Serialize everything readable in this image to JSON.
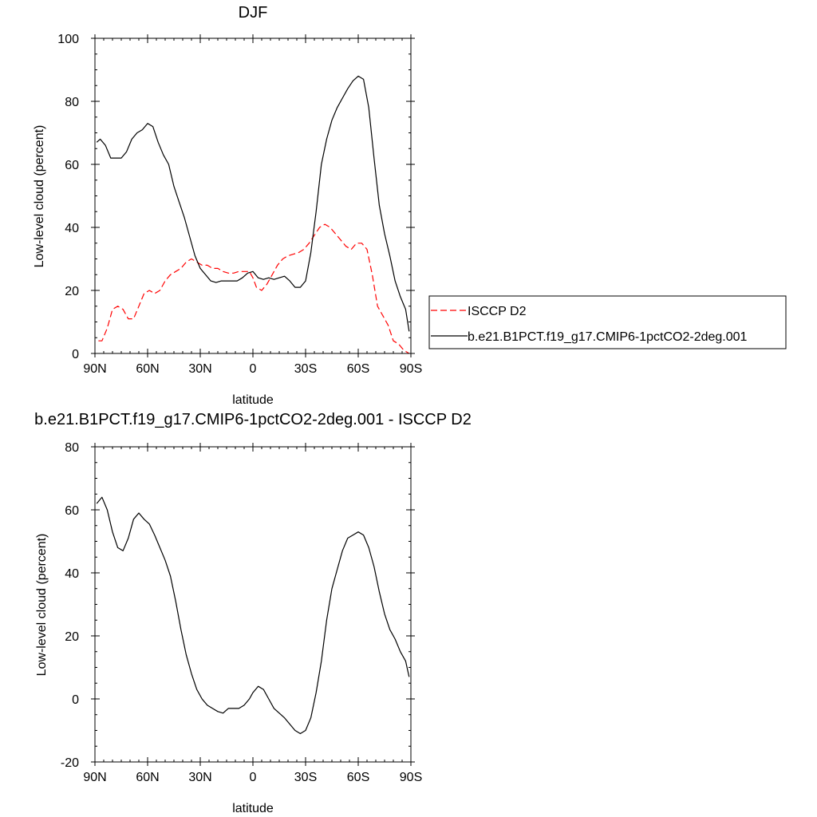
{
  "chart_data": [
    {
      "type": "line",
      "title": "DJF",
      "xlabel": "latitude",
      "ylabel": "Low-level cloud (percent)",
      "xlim": [
        90,
        -90
      ],
      "ylim": [
        0,
        100
      ],
      "xtick_values": [
        90,
        60,
        30,
        0,
        -30,
        -60,
        -90
      ],
      "xtick_labels": [
        "90N",
        "60N",
        "30N",
        "0",
        "30S",
        "60S",
        "90S"
      ],
      "ytick_values": [
        0,
        20,
        40,
        60,
        80,
        100
      ],
      "ytick_labels": [
        "0",
        "20",
        "40",
        "60",
        "80",
        "100"
      ],
      "legend_position": "right",
      "series": [
        {
          "name": "ISCCP D2",
          "color": "#ff0000",
          "dash": "dashed",
          "x": [
            88,
            86,
            83,
            80,
            77,
            74,
            71,
            68,
            65,
            62,
            59,
            56,
            53,
            50,
            47,
            44,
            41,
            38,
            35,
            32,
            29,
            26,
            23,
            20,
            17,
            14,
            11,
            8,
            5,
            2,
            0,
            -2,
            -5,
            -8,
            -11,
            -14,
            -17,
            -20,
            -23,
            -26,
            -29,
            -32,
            -35,
            -38,
            -41,
            -44,
            -47,
            -50,
            -53,
            -56,
            -59,
            -62,
            -65,
            -68,
            -71,
            -74,
            -77,
            -80,
            -83,
            -86,
            -89
          ],
          "y": [
            4,
            4,
            8,
            14,
            15,
            14,
            11,
            11,
            15,
            19,
            20,
            19,
            20,
            23,
            25,
            26,
            27,
            29,
            30,
            29,
            28,
            28,
            27,
            27,
            26,
            25.5,
            25.5,
            26,
            26,
            26,
            24,
            21,
            20,
            22,
            25,
            28,
            30,
            31,
            31.5,
            32,
            33,
            35,
            37.5,
            40,
            41,
            40,
            38,
            36,
            34,
            33,
            35,
            35,
            33,
            25,
            15,
            12,
            9,
            4,
            3,
            1,
            0
          ]
        },
        {
          "name": "b.e21.B1PCT.f19_g17.CMIP6-1pctCO2-2deg.001",
          "color": "#000000",
          "dash": "solid",
          "x": [
            89,
            87,
            84,
            81,
            78,
            75,
            72,
            69,
            66,
            63,
            60,
            57,
            54,
            51,
            48,
            45,
            42,
            39,
            36,
            33,
            30,
            27,
            24,
            21,
            18,
            15,
            12,
            9,
            6,
            3,
            0,
            -3,
            -6,
            -9,
            -12,
            -15,
            -18,
            -21,
            -24,
            -27,
            -30,
            -33,
            -36,
            -39,
            -42,
            -45,
            -48,
            -51,
            -54,
            -57,
            -60,
            -63,
            -66,
            -69,
            -72,
            -75,
            -78,
            -81,
            -84,
            -87,
            -89
          ],
          "y": [
            67,
            68,
            66,
            62,
            62,
            62,
            64,
            68,
            70,
            71,
            73,
            72,
            67,
            63,
            60,
            53,
            48,
            43,
            37,
            31,
            27,
            25,
            23,
            22.5,
            23,
            23,
            23,
            23,
            24,
            25.5,
            26,
            24,
            23.5,
            24,
            23.5,
            24,
            24.5,
            23,
            21,
            21,
            23,
            32,
            45,
            60,
            68,
            74,
            78,
            81,
            84,
            86.5,
            88,
            87,
            78,
            62,
            47,
            38,
            31,
            23,
            18,
            14,
            7
          ]
        }
      ]
    },
    {
      "type": "line",
      "title": "b.e21.B1PCT.f19_g17.CMIP6-1pctCO2-2deg.001 - ISCCP D2",
      "xlabel": "latitude",
      "ylabel": "Low-level cloud (percent)",
      "xlim": [
        90,
        -90
      ],
      "ylim": [
        -20,
        80
      ],
      "xtick_values": [
        90,
        60,
        30,
        0,
        -30,
        -60,
        -90
      ],
      "xtick_labels": [
        "90N",
        "60N",
        "30N",
        "0",
        "30S",
        "60S",
        "90S"
      ],
      "ytick_values": [
        -20,
        0,
        20,
        40,
        60,
        80
      ],
      "ytick_labels": [
        "-20",
        "0",
        "20",
        "40",
        "60",
        "80"
      ],
      "series": [
        {
          "color": "#000000",
          "dash": "solid",
          "x": [
            89,
            86,
            83,
            80,
            77,
            74,
            71,
            68,
            65,
            62,
            59,
            56,
            53,
            50,
            47,
            44,
            41,
            38,
            35,
            32,
            29,
            26,
            23,
            20,
            17,
            14,
            11,
            8,
            5,
            2,
            0,
            -3,
            -6,
            -9,
            -12,
            -15,
            -18,
            -21,
            -24,
            -27,
            -30,
            -33,
            -36,
            -39,
            -42,
            -45,
            -48,
            -51,
            -54,
            -57,
            -60,
            -63,
            -66,
            -69,
            -72,
            -75,
            -78,
            -81,
            -84,
            -87,
            -89
          ],
          "y": [
            62,
            64,
            60,
            53,
            48,
            47,
            51,
            57,
            59,
            57,
            55.5,
            52,
            48,
            44,
            39,
            31,
            22,
            14,
            8,
            3,
            0,
            -2,
            -3,
            -4,
            -4.5,
            -3,
            -3,
            -3,
            -2,
            0,
            2,
            4,
            3,
            0,
            -3,
            -4.5,
            -6,
            -8,
            -10,
            -11,
            -10,
            -6,
            2,
            12,
            25,
            35,
            41,
            47,
            51,
            52,
            53,
            52,
            48,
            42,
            34,
            27,
            22,
            19,
            15,
            12,
            7
          ]
        }
      ]
    }
  ]
}
